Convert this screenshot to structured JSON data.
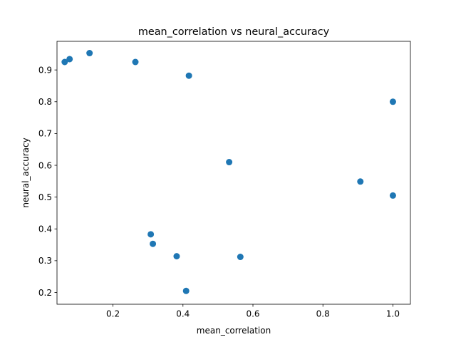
{
  "colors": {
    "point": "#1f77b4",
    "axis": "#000000",
    "background": "#ffffff"
  },
  "chart_data": {
    "type": "scatter",
    "title": "mean_correlation vs neural_accuracy",
    "xlabel": "mean_correlation",
    "ylabel": "neural_accuracy",
    "xlim": [
      0.04,
      1.05
    ],
    "ylim": [
      0.163,
      0.99
    ],
    "grid": false,
    "xticks": [
      0.2,
      0.4,
      0.6,
      0.8,
      1.0
    ],
    "xtick_labels": [
      "0.2",
      "0.4",
      "0.6",
      "0.8",
      "1.0"
    ],
    "yticks": [
      0.2,
      0.3,
      0.4,
      0.5,
      0.6,
      0.7,
      0.8,
      0.9
    ],
    "ytick_labels": [
      "0.2",
      "0.3",
      "0.4",
      "0.5",
      "0.6",
      "0.7",
      "0.8",
      "0.9"
    ],
    "points": [
      {
        "x": 0.062,
        "y": 0.925
      },
      {
        "x": 0.076,
        "y": 0.934
      },
      {
        "x": 0.133,
        "y": 0.953
      },
      {
        "x": 0.264,
        "y": 0.925
      },
      {
        "x": 0.417,
        "y": 0.882
      },
      {
        "x": 0.532,
        "y": 0.61
      },
      {
        "x": 0.308,
        "y": 0.383
      },
      {
        "x": 0.314,
        "y": 0.353
      },
      {
        "x": 0.382,
        "y": 0.314
      },
      {
        "x": 0.564,
        "y": 0.312
      },
      {
        "x": 0.409,
        "y": 0.205
      },
      {
        "x": 0.907,
        "y": 0.549
      },
      {
        "x": 1.0,
        "y": 0.8
      },
      {
        "x": 1.0,
        "y": 0.505
      }
    ]
  }
}
